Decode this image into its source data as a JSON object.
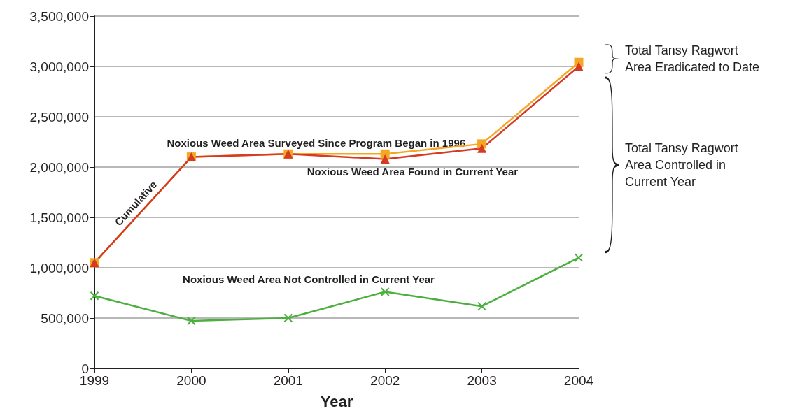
{
  "chart_data": {
    "type": "line",
    "xlabel": "Year",
    "categories": [
      "1999",
      "2000",
      "2001",
      "2002",
      "2003",
      "2004"
    ],
    "series": [
      {
        "name": "Cumulative Noxious Weed Area Surveyed Since Program Began in 1996",
        "color": "#f5a623",
        "marker": "square",
        "values": [
          1050000,
          2100000,
          2130000,
          2130000,
          2230000,
          3040000
        ]
      },
      {
        "name": "Noxious Weed Area Found in Current Year",
        "color": "#d63a22",
        "marker": "triangle",
        "values": [
          1050000,
          2100000,
          2130000,
          2080000,
          2185000,
          3000000
        ]
      },
      {
        "name": "Noxious Weed Area Not Controlled in Current Year",
        "color": "#4caf3f",
        "marker": "cross",
        "values": [
          720000,
          472000,
          500000,
          760000,
          617000,
          1100000
        ]
      }
    ],
    "annotations": [
      "Total Tansy Ragwort Area Eradicated to Date",
      "Total Tansy Ragwort Area Controlled in Current Year"
    ],
    "ylim": [
      0,
      3500000
    ],
    "yticks": [
      0,
      {
        "value": 500000,
        "label": "500,000"
      },
      {
        "value": 1000000,
        "label": "1,000,000"
      },
      {
        "value": 1500000,
        "label": "1,500,000"
      },
      {
        "value": 2000000,
        "label": "2,000,000"
      },
      {
        "value": 2500000,
        "label": "2,500,000"
      },
      {
        "value": 3000000,
        "label": "3,000,000"
      },
      {
        "value": 3500000,
        "label": "3,500,000"
      }
    ],
    "grid": "y",
    "legend": false
  }
}
